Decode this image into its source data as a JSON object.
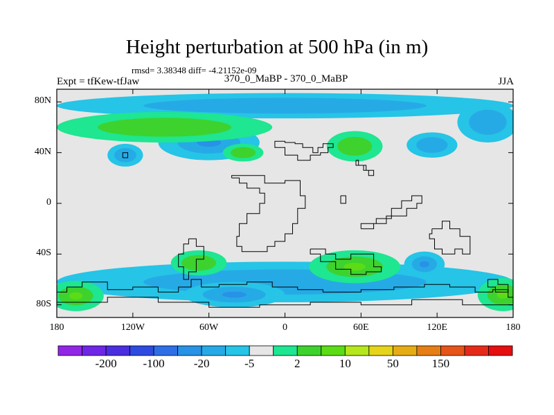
{
  "map": {
    "title": "Height perturbation at 500 hPa (in m)",
    "stats_text": "rmsd= 3.38348 diff= -4.21152e-09",
    "left_label": "Expt = tfKew-tfJaw",
    "center_label": "370_0_MaBP - 370_0_MaBP",
    "right_label": "JJA",
    "projection": "cylindrical-equidistant",
    "lat_range": [
      -90,
      90
    ],
    "lon_range": [
      -180,
      180
    ],
    "lat_ticks": [
      {
        "value": 80,
        "label": "80N"
      },
      {
        "value": 40,
        "label": "40N"
      },
      {
        "value": 0,
        "label": "0"
      },
      {
        "value": -40,
        "label": "40S"
      },
      {
        "value": -80,
        "label": "80S"
      }
    ],
    "lon_ticks": [
      {
        "value": -180,
        "label": "180"
      },
      {
        "value": -120,
        "label": "120W"
      },
      {
        "value": -60,
        "label": "60W"
      },
      {
        "value": 0,
        "label": "0"
      },
      {
        "value": 60,
        "label": "60E"
      },
      {
        "value": 120,
        "label": "120E"
      },
      {
        "value": 180,
        "label": "180"
      }
    ],
    "background_color": "#e6e6e6"
  },
  "colorbar": {
    "colors": [
      "#9226e6",
      "#6f26e6",
      "#4a2ee0",
      "#2e4ae0",
      "#2e6fe6",
      "#2792e6",
      "#26aae6",
      "#26c4e6",
      "#e6e6e6",
      "#1ee691",
      "#3ed22e",
      "#5bdc16",
      "#b5e61e",
      "#e6d41a",
      "#e6ac16",
      "#e67e16",
      "#e6541a",
      "#e62a1a",
      "#e60e0e"
    ],
    "labels": [
      {
        "after_box": 1,
        "text": "-200"
      },
      {
        "after_box": 3,
        "text": "-100"
      },
      {
        "after_box": 5,
        "text": "-20"
      },
      {
        "after_box": 7,
        "text": "-5"
      },
      {
        "after_box": 9,
        "text": "2"
      },
      {
        "after_box": 11,
        "text": "10"
      },
      {
        "after_box": 13,
        "text": "50"
      },
      {
        "after_box": 15,
        "text": "150"
      }
    ]
  },
  "fields": [
    {
      "name": "arctic-positive",
      "sign": "positive",
      "shade": 1,
      "center": [
        -95,
        60
      ],
      "radius": [
        85,
        12
      ]
    },
    {
      "name": "arctic-negative-strip",
      "sign": "negative",
      "shade": 1,
      "center": [
        0,
        77
      ],
      "radius": [
        180,
        10
      ]
    },
    {
      "name": "n-pacific-negative",
      "sign": "negative",
      "shade": 2,
      "center": [
        -60,
        48
      ],
      "radius": [
        40,
        14
      ]
    },
    {
      "name": "n-pacific-small-negative",
      "sign": "negative",
      "shade": 1,
      "center": [
        -126,
        38
      ],
      "radius": [
        14,
        9
      ]
    },
    {
      "name": "n-atlantic-positive",
      "sign": "positive",
      "shade": 1,
      "center": [
        -33,
        40
      ],
      "radius": [
        16,
        7
      ]
    },
    {
      "name": "europe-positive",
      "sign": "positive",
      "shade": 1,
      "center": [
        55,
        45
      ],
      "radius": [
        22,
        12
      ]
    },
    {
      "name": "e-asia-negative",
      "sign": "negative",
      "shade": 1,
      "center": [
        116,
        46
      ],
      "radius": [
        20,
        10
      ]
    },
    {
      "name": "w-pacific-negative",
      "sign": "negative",
      "shade": 1,
      "center": [
        160,
        64
      ],
      "radius": [
        24,
        16
      ]
    },
    {
      "name": "s-hem-negative-band",
      "sign": "negative",
      "shade": 1,
      "center": [
        0,
        -62
      ],
      "radius": [
        180,
        16
      ]
    },
    {
      "name": "s-atlantic-positive",
      "sign": "positive",
      "shade": 1,
      "center": [
        -68,
        -47
      ],
      "radius": [
        22,
        10
      ]
    },
    {
      "name": "s-indian-positive",
      "sign": "positive",
      "shade": 2,
      "center": [
        55,
        -50
      ],
      "radius": [
        36,
        13
      ]
    },
    {
      "name": "s-pacific-positive-west",
      "sign": "positive",
      "shade": 2,
      "center": [
        -165,
        -73
      ],
      "radius": [
        22,
        12
      ]
    },
    {
      "name": "s-pacific-positive-east",
      "sign": "positive",
      "shade": 2,
      "center": [
        172,
        -72
      ],
      "radius": [
        20,
        13
      ]
    },
    {
      "name": "antarctic-negative",
      "sign": "negative",
      "shade": 2,
      "center": [
        -40,
        -72
      ],
      "radius": [
        40,
        10
      ]
    },
    {
      "name": "s-australia-negative",
      "sign": "negative",
      "shade": 2,
      "center": [
        110,
        -48
      ],
      "radius": [
        16,
        10
      ]
    }
  ]
}
